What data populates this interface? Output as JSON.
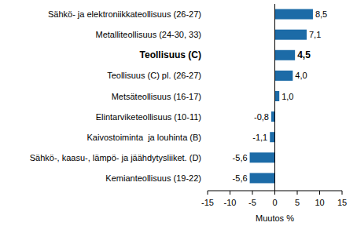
{
  "chart_data": {
    "type": "bar",
    "orientation": "horizontal",
    "categories": [
      "Sähkö- ja elektroniikkateollisuus (26-27)",
      "Metalliteollisuus (24-30, 33)",
      "Teollisuus (C)",
      "Teollisuus (C) pl. (26-27)",
      "Metsäteollisuus (16-17)",
      "Elintarviketeollisuus (10-11)",
      "Kaivostoiminta  ja louhinta (B)",
      "Sähkö-, kaasu-, lämpö- ja jäähdytysliiket. (D)",
      "Kemianteollisuus (19-22)"
    ],
    "values": [
      8.5,
      7.1,
      4.5,
      4.0,
      1.0,
      -0.8,
      -1.1,
      -5.6,
      -5.6
    ],
    "value_labels": [
      "8,5",
      "7,1",
      "4,5",
      "4,0",
      "1,0",
      "-0,8",
      "-1,1",
      "-5,6",
      "-5,6"
    ],
    "data_labels": true,
    "color": "#1c6ba7",
    "x_label": "Muutos %",
    "xlim": [
      -15,
      15
    ],
    "xticks": [
      -15,
      -10,
      -5,
      0,
      5,
      10,
      15
    ],
    "grid": false
  }
}
